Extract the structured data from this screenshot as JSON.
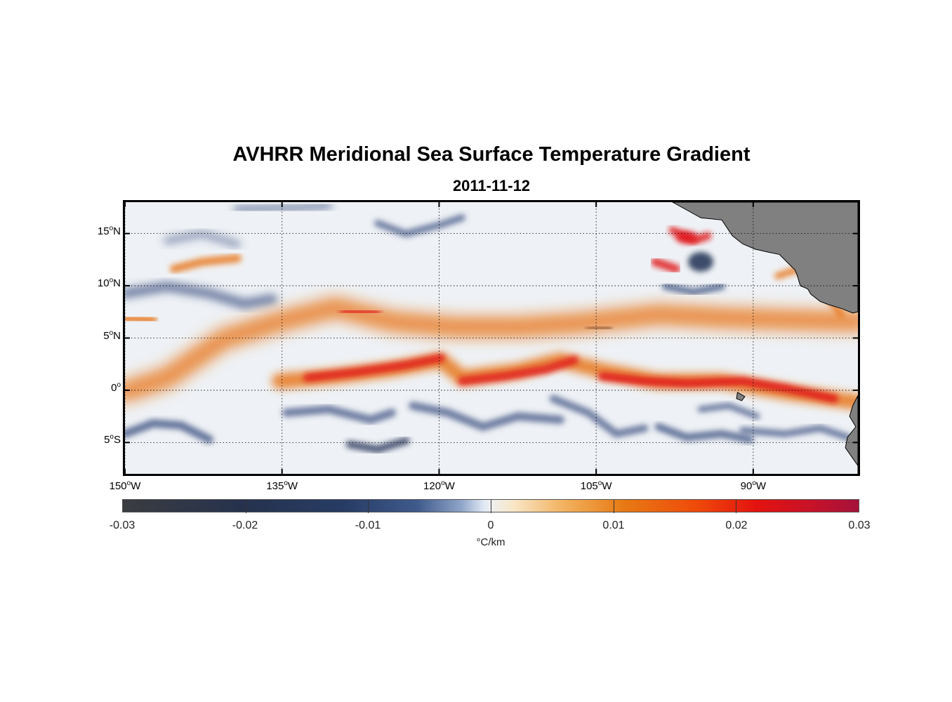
{
  "title": "AVHRR Meridional Sea Surface Temperature Gradient",
  "subtitle": "2011-11-12",
  "lat_ticks": [
    {
      "value": 15,
      "deg": "15",
      "hemi": "N"
    },
    {
      "value": 10,
      "deg": "10",
      "hemi": "N"
    },
    {
      "value": 5,
      "deg": "5",
      "hemi": "N"
    },
    {
      "value": 0,
      "deg": "0",
      "hemi": ""
    },
    {
      "value": -5,
      "deg": "5",
      "hemi": "S"
    }
  ],
  "lon_ticks": [
    {
      "value": -150,
      "deg": "150",
      "hemi": "W"
    },
    {
      "value": -135,
      "deg": "135",
      "hemi": "W"
    },
    {
      "value": -120,
      "deg": "120",
      "hemi": "W"
    },
    {
      "value": -105,
      "deg": "105",
      "hemi": "W"
    },
    {
      "value": -90,
      "deg": "90",
      "hemi": "W"
    }
  ],
  "extent": {
    "lon_min": -150,
    "lon_max": -80,
    "lat_min": -8,
    "lat_max": 18
  },
  "colorbar": {
    "min": -0.03,
    "max": 0.03,
    "ticks": [
      "-0.03",
      "-0.02",
      "-0.01",
      "0",
      "0.01",
      "0.02",
      "0.03"
    ],
    "unit_label": "°C/km"
  },
  "colors": {
    "land": "#808080",
    "warm_band": "#e8751a",
    "strong_warm": "#e0141a",
    "cold": "#3b5080",
    "strong_cold": "#2a3a5c",
    "ocean_neutral": "#eef1f5"
  }
}
